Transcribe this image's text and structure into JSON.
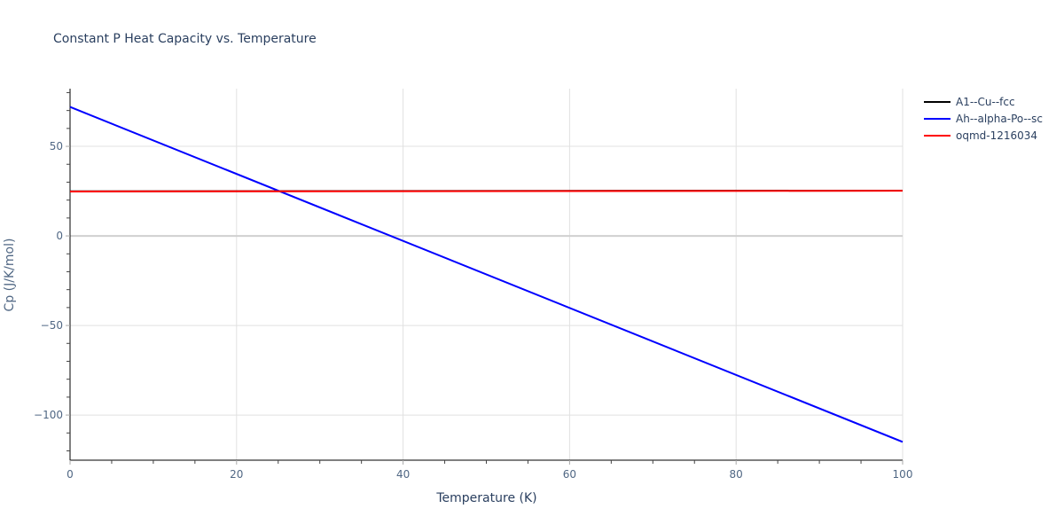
{
  "chart_data": {
    "type": "line",
    "title": "Constant P Heat Capacity vs. Temperature",
    "xlabel": "Temperature (K)",
    "ylabel": "Cp (J/K/mol)",
    "xlim": [
      0,
      100
    ],
    "ylim": [
      -125.2,
      82.2
    ],
    "x_ticks": [
      0,
      20,
      40,
      60,
      80,
      100
    ],
    "y_ticks": [
      -100,
      -50,
      0,
      50
    ],
    "y_tick_labels": [
      "−100",
      "−50",
      "0",
      "50"
    ],
    "grid": true,
    "legend_position": "right",
    "series": [
      {
        "name": "A1--Cu--fcc",
        "color": "#000000",
        "x": [
          0,
          100
        ],
        "y": [
          24.9,
          25.3
        ]
      },
      {
        "name": "Ah--alpha-Po--sc",
        "color": "#0000ff",
        "x": [
          0,
          100
        ],
        "y": [
          72,
          -115
        ]
      },
      {
        "name": "oqmd-1216034",
        "color": "#ff0000",
        "x": [
          0,
          100
        ],
        "y": [
          24.8,
          25.2
        ]
      }
    ]
  }
}
